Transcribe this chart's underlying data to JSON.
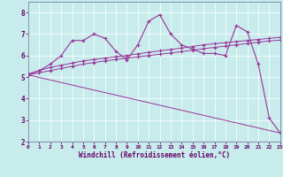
{
  "xlabel": "Windchill (Refroidissement éolien,°C)",
  "bg_color": "#c8ecec",
  "line_color": "#993399",
  "xlim": [
    0,
    23
  ],
  "ylim": [
    2,
    8.5
  ],
  "yticks": [
    2,
    3,
    4,
    5,
    6,
    7,
    8
  ],
  "xticks": [
    0,
    1,
    2,
    3,
    4,
    5,
    6,
    7,
    8,
    9,
    10,
    11,
    12,
    13,
    14,
    15,
    16,
    17,
    18,
    19,
    20,
    21,
    22,
    23
  ],
  "series1_x": [
    0,
    1,
    2,
    3,
    4,
    5,
    6,
    7,
    8,
    9,
    10,
    11,
    12,
    13,
    14,
    15,
    16,
    17,
    18,
    19,
    20,
    21,
    22,
    23
  ],
  "series1_y": [
    5.1,
    5.3,
    5.6,
    6.0,
    6.7,
    6.7,
    7.0,
    6.8,
    6.2,
    5.8,
    6.5,
    7.6,
    7.9,
    7.0,
    6.5,
    6.3,
    6.1,
    6.1,
    6.0,
    7.4,
    7.1,
    5.6,
    3.1,
    2.4
  ],
  "series2_x": [
    0,
    1,
    2,
    3,
    4,
    5,
    6,
    7,
    8,
    9,
    10,
    11,
    12,
    13,
    14,
    15,
    16,
    17,
    18,
    19,
    20,
    21,
    22,
    23
  ],
  "series2_y": [
    5.15,
    5.3,
    5.45,
    5.55,
    5.65,
    5.75,
    5.82,
    5.88,
    5.95,
    6.0,
    6.08,
    6.15,
    6.22,
    6.28,
    6.35,
    6.42,
    6.5,
    6.55,
    6.6,
    6.65,
    6.7,
    6.75,
    6.8,
    6.85
  ],
  "series3_x": [
    0,
    1,
    2,
    3,
    4,
    5,
    6,
    7,
    8,
    9,
    10,
    11,
    12,
    13,
    14,
    15,
    16,
    17,
    18,
    19,
    20,
    21,
    22,
    23
  ],
  "series3_y": [
    5.1,
    5.2,
    5.3,
    5.4,
    5.5,
    5.6,
    5.68,
    5.75,
    5.82,
    5.88,
    5.94,
    6.0,
    6.06,
    6.12,
    6.18,
    6.25,
    6.32,
    6.38,
    6.44,
    6.5,
    6.56,
    6.62,
    6.68,
    6.72
  ],
  "series4_x": [
    0,
    23
  ],
  "series4_y": [
    5.1,
    2.4
  ]
}
